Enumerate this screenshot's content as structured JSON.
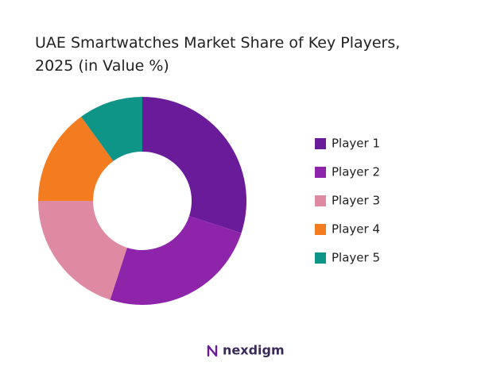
{
  "chart_data": {
    "type": "donut",
    "title": "UAE Smartwatches Market Share of Key Players, 2025 (in Value %)",
    "categories": [
      "Player 1",
      "Player 2",
      "Player 3",
      "Player 4",
      "Player 5"
    ],
    "values": [
      30,
      25,
      20,
      15,
      10
    ],
    "colors": [
      "#6a1b9a",
      "#8e24aa",
      "#de8aa3",
      "#f47c20",
      "#0f9488"
    ],
    "legend": "right",
    "brand": "nexdigm"
  }
}
